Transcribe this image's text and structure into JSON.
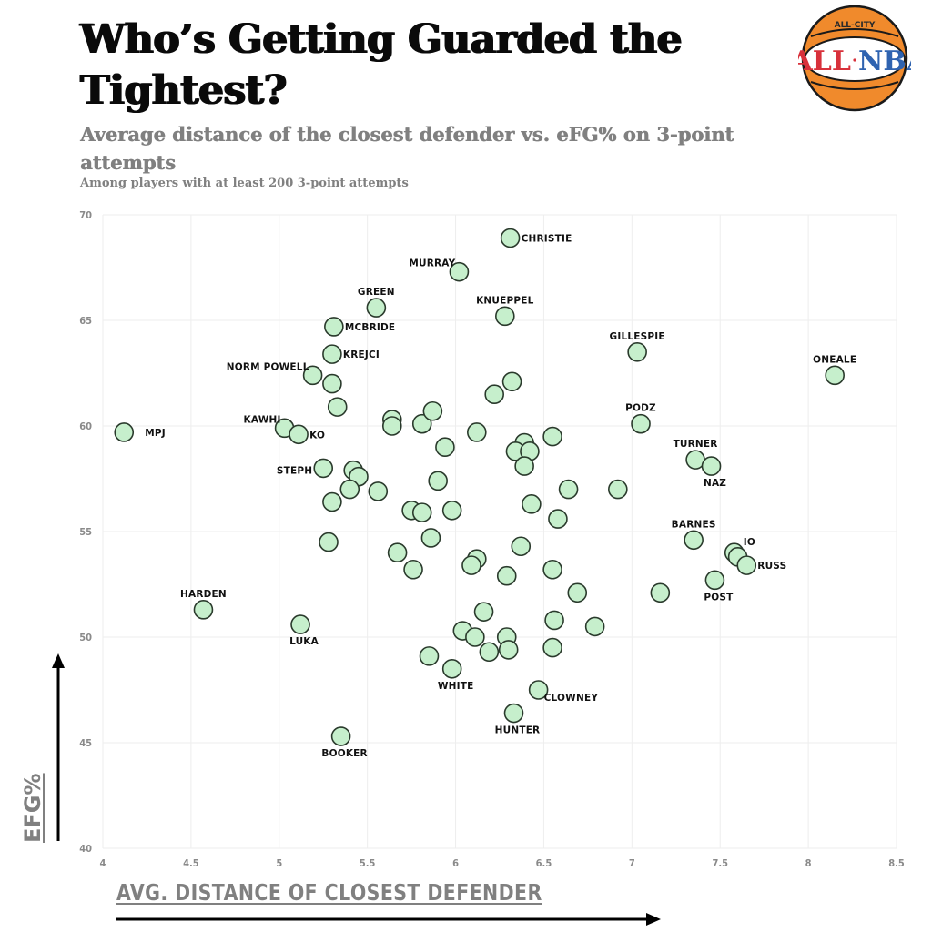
{
  "header": {
    "title": "Who’s Getting Guarded the Tightest?",
    "subtitle": "Average distance of the closest defender vs. eFG% on 3-point attempts",
    "note": "Among players with at least 200 3-point attempts"
  },
  "logo": {
    "top_text": "ALL-CITY",
    "left_text": "ALL",
    "right_text": "NBA",
    "ball_color": "#f08a2c",
    "band_color": "#ffffff",
    "left_color": "#d8313b",
    "right_color": "#2f63b0"
  },
  "axes": {
    "x_label": "AVG. DISTANCE OF CLOSEST DEFENDER",
    "y_label": "EFG%"
  },
  "style": {
    "marker_fill": "#c6efcc",
    "marker_stroke": "#2a3a2c",
    "grid_color": "#eeeeee",
    "tick_color": "#8a8a8a",
    "axis_label_color": "#808080"
  },
  "chart_data": {
    "type": "scatter",
    "title": "Who’s Getting Guarded the Tightest?",
    "subtitle": "Average distance of the closest defender vs. eFG% on 3-point attempts",
    "annotation": "Among players with at least 200 3-point attempts",
    "xlabel": "AVG. DISTANCE OF CLOSEST DEFENDER",
    "ylabel": "EFG%",
    "xlim": [
      4,
      8.5
    ],
    "ylim": [
      40,
      70
    ],
    "x_ticks": [
      "4",
      "4.5",
      "5",
      "5.5",
      "6",
      "6.5",
      "7",
      "7.5",
      "8",
      "8.5"
    ],
    "y_ticks": [
      "40",
      "45",
      "50",
      "55",
      "60",
      "65",
      "70"
    ],
    "grid": true,
    "legend": "none",
    "points": [
      {
        "label": "CHRISTIE",
        "x": 6.31,
        "y": 68.9,
        "lp": "r"
      },
      {
        "label": "MURRAY",
        "x": 6.02,
        "y": 67.3,
        "lp": "tl"
      },
      {
        "label": "GREEN",
        "x": 5.55,
        "y": 65.6,
        "lp": "t"
      },
      {
        "label": "KNUEPPEL",
        "x": 6.28,
        "y": 65.2,
        "lp": "t"
      },
      {
        "label": "MCBRIDE",
        "x": 5.31,
        "y": 64.7,
        "lp": "r"
      },
      {
        "label": "KREJCI",
        "x": 5.3,
        "y": 63.4,
        "lp": "r"
      },
      {
        "label": "GILLESPIE",
        "x": 7.03,
        "y": 63.5,
        "lp": "t"
      },
      {
        "label": "ONEALE",
        "x": 8.15,
        "y": 62.4,
        "lp": "t"
      },
      {
        "label": "NORM POWELL",
        "x": 5.19,
        "y": 62.4,
        "lp": "tl"
      },
      {
        "label": "",
        "x": 5.3,
        "y": 62.0
      },
      {
        "label": "",
        "x": 6.32,
        "y": 62.1
      },
      {
        "label": "",
        "x": 6.22,
        "y": 61.5
      },
      {
        "label": "",
        "x": 5.33,
        "y": 60.9
      },
      {
        "label": "",
        "x": 5.64,
        "y": 60.3
      },
      {
        "label": "",
        "x": 5.64,
        "y": 60.0
      },
      {
        "label": "",
        "x": 5.81,
        "y": 60.1
      },
      {
        "label": "",
        "x": 5.87,
        "y": 60.7
      },
      {
        "label": "",
        "x": 6.12,
        "y": 59.7
      },
      {
        "label": "PODZ",
        "x": 7.05,
        "y": 60.1,
        "lp": "t"
      },
      {
        "label": "KAWHI",
        "x": 5.03,
        "y": 59.9,
        "lp": "tl"
      },
      {
        "label": "KO",
        "x": 5.11,
        "y": 59.6,
        "lp": "r"
      },
      {
        "label": "MPJ",
        "x": 4.12,
        "y": 59.7,
        "lp": "rr"
      },
      {
        "label": "",
        "x": 5.94,
        "y": 59.0
      },
      {
        "label": "",
        "x": 6.39,
        "y": 59.2
      },
      {
        "label": "",
        "x": 6.34,
        "y": 58.8
      },
      {
        "label": "",
        "x": 6.42,
        "y": 58.8
      },
      {
        "label": "",
        "x": 6.39,
        "y": 58.1
      },
      {
        "label": "",
        "x": 6.55,
        "y": 59.5
      },
      {
        "label": "TURNER",
        "x": 7.36,
        "y": 58.4,
        "lp": "t"
      },
      {
        "label": "NAZ",
        "x": 7.45,
        "y": 58.1,
        "lp": "b"
      },
      {
        "label": "STEPH",
        "x": 5.25,
        "y": 58.0,
        "lp": "l"
      },
      {
        "label": "",
        "x": 5.42,
        "y": 57.9
      },
      {
        "label": "",
        "x": 5.45,
        "y": 57.6
      },
      {
        "label": "",
        "x": 5.4,
        "y": 57.0
      },
      {
        "label": "",
        "x": 5.56,
        "y": 56.9
      },
      {
        "label": "",
        "x": 5.3,
        "y": 56.4
      },
      {
        "label": "",
        "x": 5.9,
        "y": 57.4
      },
      {
        "label": "",
        "x": 5.98,
        "y": 56.0
      },
      {
        "label": "",
        "x": 5.75,
        "y": 56.0
      },
      {
        "label": "",
        "x": 5.81,
        "y": 55.9
      },
      {
        "label": "",
        "x": 6.43,
        "y": 56.3
      },
      {
        "label": "",
        "x": 6.64,
        "y": 57.0
      },
      {
        "label": "",
        "x": 6.92,
        "y": 57.0
      },
      {
        "label": "",
        "x": 6.58,
        "y": 55.6
      },
      {
        "label": "BARNES",
        "x": 7.35,
        "y": 54.6,
        "lp": "t"
      },
      {
        "label": "",
        "x": 5.86,
        "y": 54.7
      },
      {
        "label": "",
        "x": 5.28,
        "y": 54.5
      },
      {
        "label": "",
        "x": 5.67,
        "y": 54.0
      },
      {
        "label": "",
        "x": 6.12,
        "y": 53.7
      },
      {
        "label": "",
        "x": 6.09,
        "y": 53.4
      },
      {
        "label": "",
        "x": 6.37,
        "y": 54.3
      },
      {
        "label": "",
        "x": 5.76,
        "y": 53.2
      },
      {
        "label": "",
        "x": 6.29,
        "y": 52.9
      },
      {
        "label": "",
        "x": 6.55,
        "y": 53.2
      },
      {
        "label": "IO",
        "x": 7.58,
        "y": 54.0,
        "lp": "tr"
      },
      {
        "label": "",
        "x": 7.6,
        "y": 53.8
      },
      {
        "label": "RUSS",
        "x": 7.65,
        "y": 53.4,
        "lp": "r"
      },
      {
        "label": "POST",
        "x": 7.47,
        "y": 52.7,
        "lp": "b"
      },
      {
        "label": "",
        "x": 6.69,
        "y": 52.1
      },
      {
        "label": "",
        "x": 7.16,
        "y": 52.1
      },
      {
        "label": "HARDEN",
        "x": 4.57,
        "y": 51.3,
        "lp": "t"
      },
      {
        "label": "",
        "x": 6.16,
        "y": 51.2
      },
      {
        "label": "",
        "x": 6.56,
        "y": 50.8
      },
      {
        "label": "",
        "x": 6.79,
        "y": 50.5
      },
      {
        "label": "LUKA",
        "x": 5.12,
        "y": 50.6,
        "lp": "b"
      },
      {
        "label": "",
        "x": 6.04,
        "y": 50.3
      },
      {
        "label": "",
        "x": 6.11,
        "y": 50.0
      },
      {
        "label": "",
        "x": 6.29,
        "y": 50.0
      },
      {
        "label": "",
        "x": 6.19,
        "y": 49.3
      },
      {
        "label": "",
        "x": 6.3,
        "y": 49.4
      },
      {
        "label": "",
        "x": 6.55,
        "y": 49.5
      },
      {
        "label": "",
        "x": 5.85,
        "y": 49.1
      },
      {
        "label": "WHITE",
        "x": 5.98,
        "y": 48.5,
        "lp": "b"
      },
      {
        "label": "CLOWNEY",
        "x": 6.47,
        "y": 47.5,
        "lp": "br"
      },
      {
        "label": "HUNTER",
        "x": 6.33,
        "y": 46.4,
        "lp": "b"
      },
      {
        "label": "BOOKER",
        "x": 5.35,
        "y": 45.3,
        "lp": "b"
      }
    ]
  }
}
